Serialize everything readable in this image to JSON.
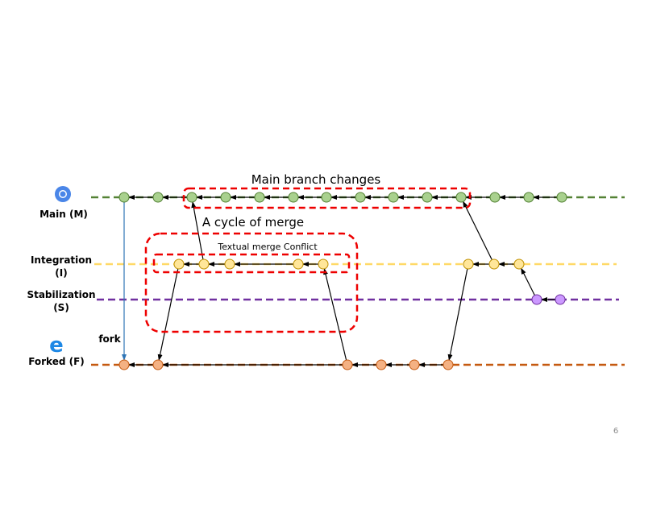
{
  "labels": {
    "main": "Main (M)",
    "integration": "Integration",
    "integration_abbr": "(I)",
    "stabilization": "Stabilization",
    "stabilization_abbr": "(S)",
    "forked": "Forked (F)",
    "fork": "fork"
  },
  "annotations": {
    "main_branch_changes": "Main branch changes",
    "cycle_of_merge": "A cycle of merge",
    "textual_conflict": "Textual merge Conflict"
  },
  "page_number": "6"
}
